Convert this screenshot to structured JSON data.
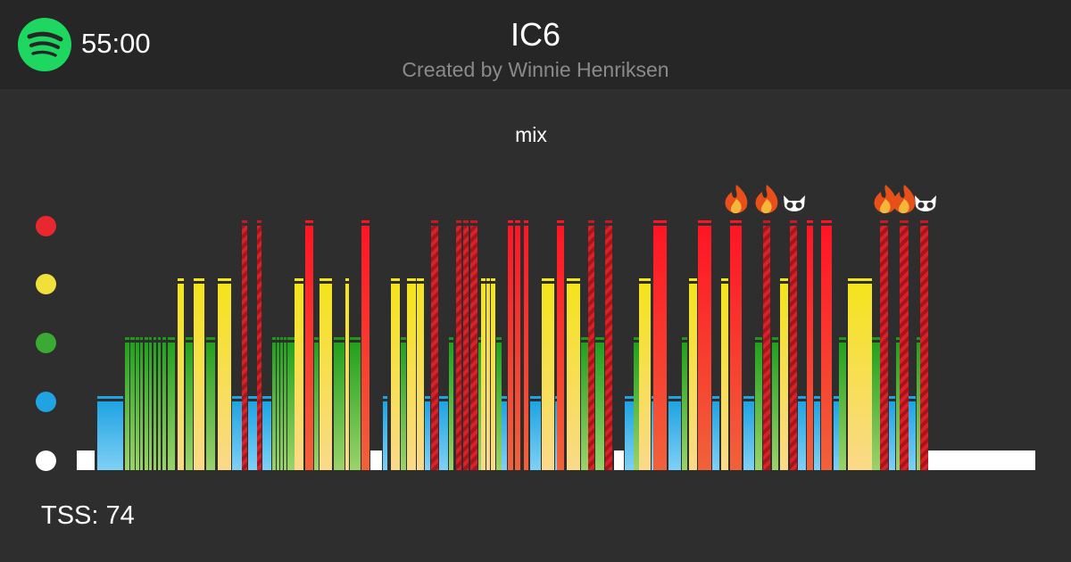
{
  "header": {
    "logo_icon": "spotify-icon",
    "duration": "55:00",
    "title": "IC6",
    "subtitle": "Created by Winnie Henriksen"
  },
  "workout": {
    "type_label": "mix",
    "tss_text": "TSS: 74"
  },
  "zones": [
    {
      "name": "red",
      "color": "#e8282e"
    },
    {
      "name": "yellow",
      "color": "#f2e03a"
    },
    {
      "name": "green",
      "color": "#3aaa35"
    },
    {
      "name": "blue",
      "color": "#1fa3e2"
    },
    {
      "name": "white",
      "color": "#ffffff"
    }
  ],
  "markers": [
    {
      "icon": "fire-icon"
    },
    {
      "icon": "fire-icon"
    },
    {
      "icon": "owl-icon"
    },
    {
      "icon": "fire-icon"
    },
    {
      "icon": "fire-icon"
    },
    {
      "icon": "owl-icon"
    }
  ]
}
